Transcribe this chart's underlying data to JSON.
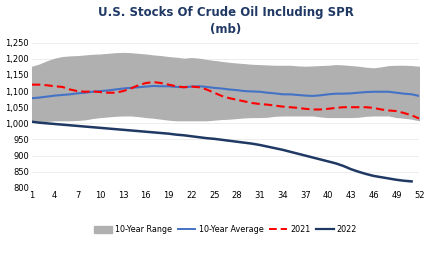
{
  "title": "U.S. Stocks Of Crude Oil Including SPR",
  "subtitle": "(mb)",
  "title_color": "#1F3864",
  "ylim": [
    800,
    1260
  ],
  "yticks": [
    800,
    850,
    900,
    950,
    1000,
    1050,
    1100,
    1150,
    1200,
    1250
  ],
  "xticks": [
    1,
    4,
    7,
    10,
    13,
    16,
    19,
    22,
    25,
    28,
    31,
    34,
    37,
    40,
    43,
    46,
    49,
    52
  ],
  "xlim": [
    1,
    52
  ],
  "weeks": [
    1,
    2,
    3,
    4,
    5,
    6,
    7,
    8,
    9,
    10,
    11,
    12,
    13,
    14,
    15,
    16,
    17,
    18,
    19,
    20,
    21,
    22,
    23,
    24,
    25,
    26,
    27,
    28,
    29,
    30,
    31,
    32,
    33,
    34,
    35,
    36,
    37,
    38,
    39,
    40,
    41,
    42,
    43,
    44,
    45,
    46,
    47,
    48,
    49,
    50,
    51,
    52
  ],
  "range_upper": [
    1175,
    1182,
    1192,
    1200,
    1205,
    1207,
    1208,
    1210,
    1212,
    1213,
    1215,
    1217,
    1218,
    1217,
    1215,
    1213,
    1210,
    1208,
    1205,
    1203,
    1200,
    1202,
    1200,
    1196,
    1193,
    1190,
    1187,
    1185,
    1183,
    1181,
    1180,
    1179,
    1178,
    1178,
    1178,
    1176,
    1175,
    1176,
    1177,
    1178,
    1180,
    1179,
    1177,
    1175,
    1172,
    1170,
    1173,
    1177,
    1178,
    1178,
    1177,
    1175
  ],
  "range_lower": [
    1005,
    1005,
    1008,
    1010,
    1010,
    1010,
    1011,
    1013,
    1017,
    1020,
    1022,
    1024,
    1025,
    1025,
    1023,
    1020,
    1018,
    1015,
    1012,
    1010,
    1010,
    1010,
    1010,
    1010,
    1012,
    1014,
    1015,
    1017,
    1019,
    1020,
    1020,
    1021,
    1024,
    1025,
    1025,
    1025,
    1025,
    1025,
    1022,
    1020,
    1020,
    1020,
    1020,
    1021,
    1024,
    1025,
    1025,
    1025,
    1020,
    1018,
    1015,
    1010
  ],
  "avg_10yr": [
    1078,
    1080,
    1083,
    1086,
    1088,
    1090,
    1093,
    1095,
    1098,
    1100,
    1102,
    1105,
    1108,
    1110,
    1112,
    1114,
    1116,
    1115,
    1115,
    1113,
    1112,
    1114,
    1115,
    1113,
    1110,
    1108,
    1105,
    1103,
    1100,
    1099,
    1098,
    1095,
    1093,
    1090,
    1090,
    1088,
    1086,
    1085,
    1087,
    1090,
    1092,
    1092,
    1093,
    1095,
    1097,
    1098,
    1098,
    1098,
    1095,
    1092,
    1090,
    1085
  ],
  "data_2021": [
    1120,
    1120,
    1118,
    1115,
    1113,
    1105,
    1100,
    1098,
    1099,
    1097,
    1095,
    1095,
    1100,
    1108,
    1118,
    1125,
    1128,
    1125,
    1120,
    1115,
    1112,
    1114,
    1112,
    1105,
    1095,
    1085,
    1078,
    1073,
    1068,
    1063,
    1060,
    1058,
    1055,
    1052,
    1050,
    1048,
    1045,
    1043,
    1043,
    1045,
    1048,
    1050,
    1050,
    1050,
    1050,
    1048,
    1043,
    1040,
    1038,
    1032,
    1025,
    1015
  ],
  "data_2022": [
    1005,
    1002,
    1000,
    998,
    996,
    994,
    992,
    990,
    988,
    986,
    984,
    982,
    980,
    978,
    976,
    974,
    972,
    970,
    968,
    965,
    963,
    960,
    957,
    954,
    952,
    949,
    946,
    943,
    940,
    937,
    933,
    928,
    923,
    918,
    912,
    906,
    900,
    894,
    888,
    882,
    876,
    868,
    858,
    850,
    843,
    837,
    833,
    829,
    825,
    822,
    820,
    null
  ],
  "range_color": "#b0b0b0",
  "avg_color": "#4472C4",
  "color_2021": "#FF0000",
  "color_2022": "#1F3864",
  "avg_linewidth": 1.5,
  "line_2021_linewidth": 1.5,
  "line_2022_linewidth": 1.8,
  "background_color": "#ffffff",
  "legend_labels": [
    "10-Year Range",
    "10-Year Average",
    "2021",
    "2022"
  ]
}
